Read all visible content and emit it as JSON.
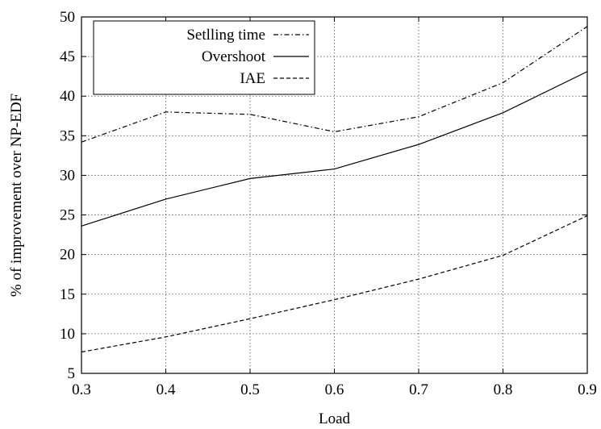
{
  "chart_data": {
    "type": "line",
    "title": "",
    "xlabel": "Load",
    "ylabel": "% of improvement over NP-EDF",
    "xlim": [
      0.3,
      0.9
    ],
    "ylim": [
      5,
      50
    ],
    "x_ticks": [
      "0.3",
      "0.4",
      "0.5",
      "0.6",
      "0.7",
      "0.8",
      "0.9"
    ],
    "y_ticks": [
      "5",
      "10",
      "15",
      "20",
      "25",
      "30",
      "35",
      "40",
      "45",
      "50"
    ],
    "grid": true,
    "legend_position": "top-left",
    "x": [
      0.3,
      0.4,
      0.5,
      0.6,
      0.7,
      0.8,
      0.9
    ],
    "series": [
      {
        "name": "Setlling time",
        "style": "dash-dot",
        "color": "#000000",
        "values": [
          34.2,
          38.0,
          37.7,
          35.5,
          37.4,
          41.7,
          48.8
        ]
      },
      {
        "name": "Overshoot",
        "style": "solid",
        "color": "#000000",
        "values": [
          23.6,
          27.0,
          29.6,
          30.8,
          33.9,
          37.9,
          43.1
        ]
      },
      {
        "name": "IAE",
        "style": "dashed",
        "color": "#000000",
        "values": [
          7.7,
          9.6,
          11.9,
          14.3,
          16.9,
          19.9,
          24.9
        ]
      }
    ]
  }
}
